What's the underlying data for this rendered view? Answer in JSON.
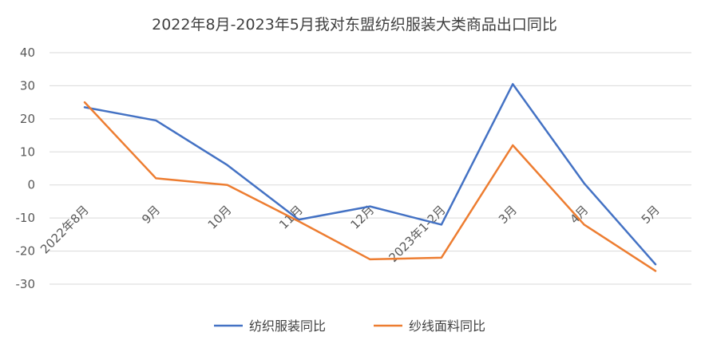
{
  "chart_data": {
    "type": "line",
    "title": "2022年8月-2023年5月我对东盟纺织服装大类商品出口同比",
    "xlabel": "",
    "ylabel": "",
    "categories": [
      "2022年8月",
      "9月",
      "10月",
      "11月",
      "12月",
      "2023年1-2月",
      "3月",
      "4月",
      "5月"
    ],
    "series": [
      {
        "name": "纺织服装同比",
        "color": "#4472C4",
        "values": [
          23.5,
          19.5,
          6,
          -10.5,
          -6.5,
          -12,
          30.5,
          0.5,
          -24
        ]
      },
      {
        "name": "纱线面料同比",
        "color": "#ED7D31",
        "values": [
          25,
          2,
          0,
          -11,
          -22.5,
          -22,
          12,
          -12,
          -26
        ]
      }
    ],
    "ylim": [
      -30,
      40
    ],
    "yticks": [
      40,
      30,
      20,
      10,
      0,
      -10,
      -20,
      -30
    ],
    "grid": true,
    "legend_position": "bottom"
  }
}
